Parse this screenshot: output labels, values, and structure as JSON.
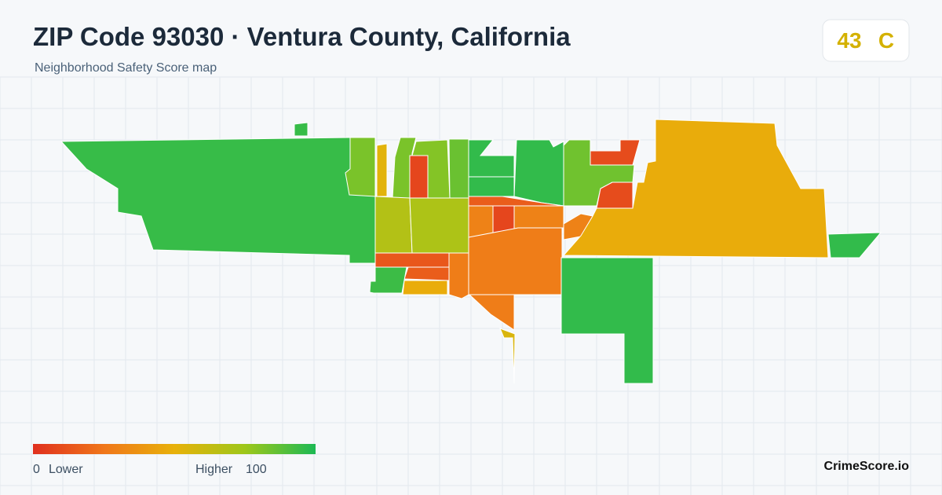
{
  "header": {
    "title": "ZIP Code 93030 · Ventura County, California",
    "subtitle": "Neighborhood Safety Score map"
  },
  "score": {
    "value": 43,
    "grade": "C"
  },
  "legend": {
    "min": 0,
    "min_label": "Lower",
    "max_label": "Higher",
    "max": 100,
    "colors": [
      "#e0301e",
      "#f0761a",
      "#e8b10a",
      "#9ec71a",
      "#1db954"
    ]
  },
  "map": {
    "region_scores": [
      95,
      82,
      52,
      82,
      8,
      80,
      85,
      96,
      96,
      96,
      84,
      10,
      10,
      68,
      70,
      16,
      30,
      8,
      30,
      14,
      16,
      94,
      48,
      28,
      28,
      55,
      30,
      48,
      96,
      96
    ]
  },
  "brand": "CrimeScore.io"
}
